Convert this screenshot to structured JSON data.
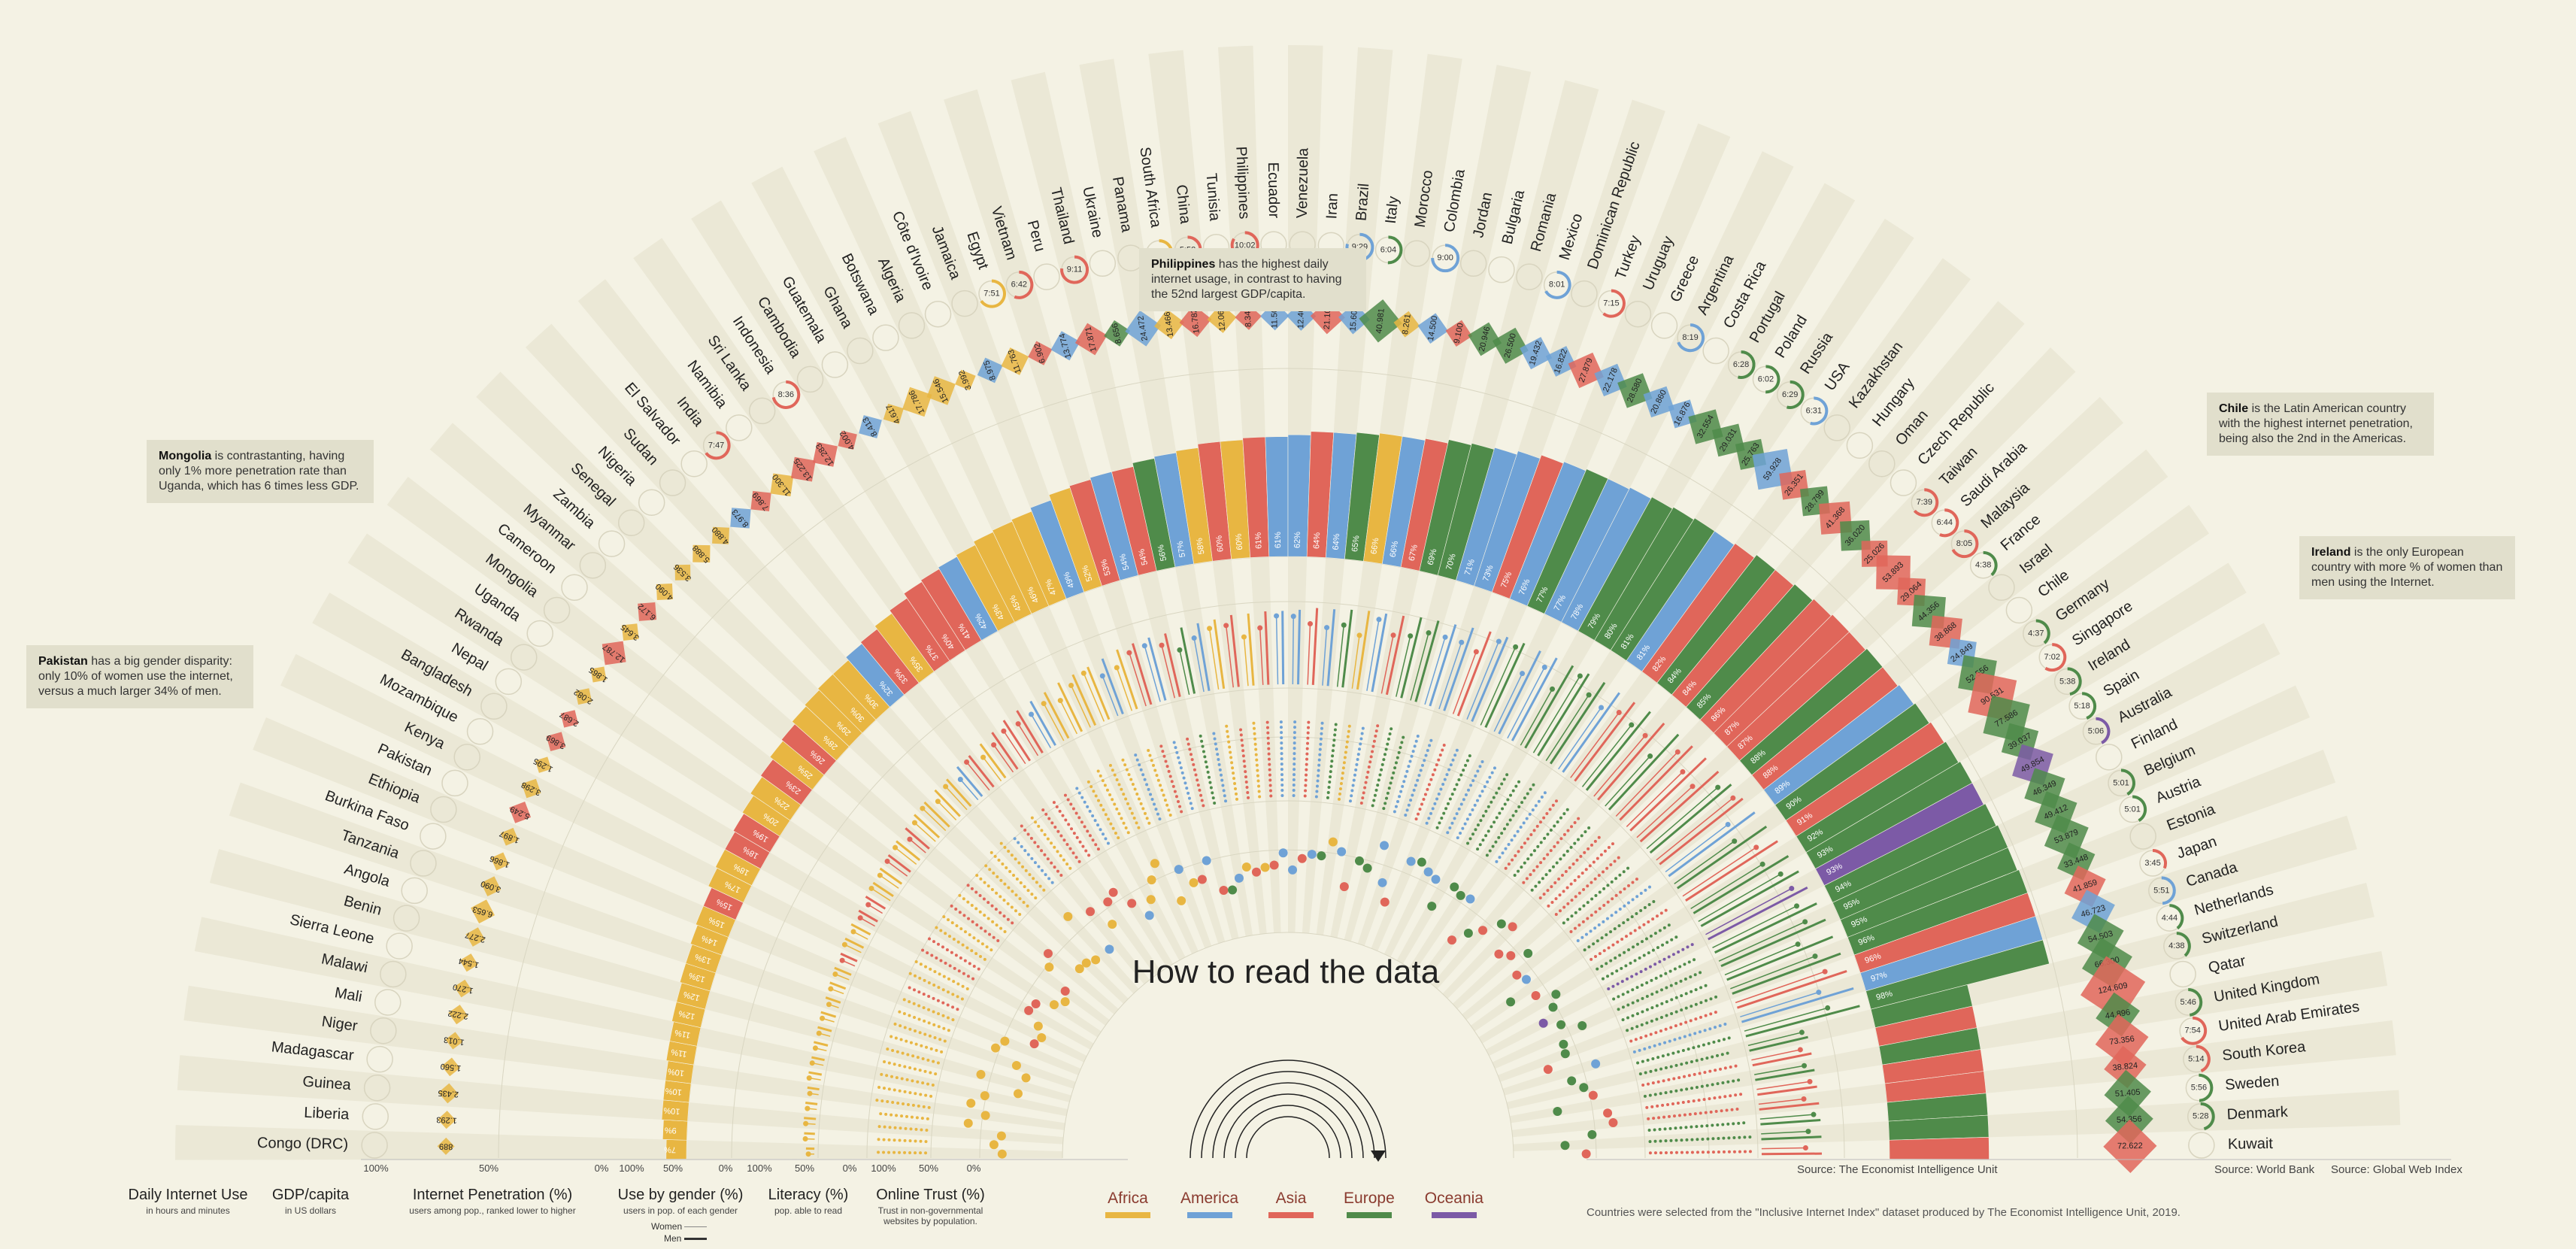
{
  "title": "How to read the data",
  "callouts": [
    {
      "bold": "Philippines",
      "text": " has the highest daily internet usage, in contrast to having the 52nd largest GDP/capita."
    },
    {
      "bold": "Mongolia",
      "text": " is contrastanting, having only 1% more penetration rate than Uganda, which has 6 times less GDP."
    },
    {
      "bold": "Pakistan",
      "text": " has a big gender disparity: only 10% of women use the internet, versus a much larger 34% of men."
    },
    {
      "bold": "Chile",
      "text": " is the Latin American country with the highest internet penetration, being also the 2nd in the Americas."
    },
    {
      "bold": "Ireland",
      "text": " is the only European country with more % of women than men using the Internet."
    }
  ],
  "bottom_labels": [
    {
      "title": "Daily Internet Use",
      "sub": "in hours and minutes"
    },
    {
      "title": "GDP/capita",
      "sub": "in US dollars"
    },
    {
      "title": "Internet Penetration (%)",
      "sub": "users among pop., ranked lower to higher"
    },
    {
      "title": "Use by gender (%)",
      "sub": "users in pop. of each gender"
    },
    {
      "title": "Literacy (%)",
      "sub": "pop. able to read"
    },
    {
      "title": "Online Trust (%)",
      "sub": "Trust in non-governmental websites by population."
    }
  ],
  "gender_legend": {
    "women": "Women",
    "men": "Men"
  },
  "legend": [
    {
      "name": "Africa",
      "color": "#e8b642"
    },
    {
      "name": "America",
      "color": "#6fa2d6"
    },
    {
      "name": "Asia",
      "color": "#e0665a"
    },
    {
      "name": "Europe",
      "color": "#4f8b4a"
    },
    {
      "name": "Oceania",
      "color": "#7c5aa6"
    }
  ],
  "axis_ticks": {
    "penetration": [
      "100%",
      "50%",
      "0%"
    ],
    "gender": [
      "100%",
      "50%",
      "0%"
    ],
    "literacy": [
      "100%",
      "50%",
      "0%"
    ],
    "trust": [
      "100%",
      "50%",
      "0%"
    ]
  },
  "sources": {
    "eiu": "Source: The Economist Intelligence Unit",
    "wb": "Source: World Bank",
    "gwi": "Source: Global Web Index"
  },
  "note": "Countries were selected from the \"Inclusive Internet Index\" dataset produced by The Economist Intelligence Unit, 2019.",
  "chart_data": {
    "type": "radial-bar",
    "penetration_labels_left": [
      "7%",
      "9%",
      "10%",
      "10%",
      "10%",
      "11%",
      "11%",
      "12%",
      "12%",
      "13%",
      "13%",
      "14%",
      "15%",
      "15%",
      "17%",
      "18%",
      "18%",
      "19%",
      "20%",
      "22%",
      "23%",
      "25%",
      "26%",
      "28%",
      "29%",
      "30%",
      "30%",
      "32%",
      "33%",
      "35%",
      "37%",
      "40%",
      "41%",
      "42%",
      "43%",
      "45%",
      "46%",
      "47%",
      "49%",
      "52%",
      "53%",
      "54%",
      "54%",
      "56%",
      "57%",
      "58%"
    ],
    "penetration_labels_right": [
      "60%",
      "60%",
      "61%",
      "61%",
      "62%",
      "64%",
      "64%",
      "65%",
      "66%",
      "66%",
      "67%",
      "69%",
      "70%",
      "71%",
      "73%",
      "75%",
      "76%",
      "77%",
      "77%",
      "78%",
      "79%",
      "80%",
      "81%",
      "81%",
      "82%",
      "84%",
      "84%",
      "85%",
      "86%",
      "87%",
      "87%",
      "88%",
      "88%",
      "89%",
      "90%",
      "91%",
      "92%",
      "93%",
      "93%",
      "94%",
      "95%",
      "95%",
      "96%",
      "96%",
      "97%",
      "98%"
    ],
    "countries": [
      {
        "name": "Congo (DRC)",
        "region": "Africa",
        "gdp": "889"
      },
      {
        "name": "Liberia",
        "region": "Africa",
        "gdp": "1.293"
      },
      {
        "name": "Guinea",
        "region": "Africa",
        "gdp": "2.435"
      },
      {
        "name": "Madagascar",
        "region": "Africa",
        "gdp": "1.560"
      },
      {
        "name": "Niger",
        "region": "Africa",
        "gdp": "1.013"
      },
      {
        "name": "Mali",
        "region": "Africa",
        "gdp": "2.222"
      },
      {
        "name": "Malawi",
        "region": "Africa",
        "gdp": "1.270"
      },
      {
        "name": "Sierra Leone",
        "region": "Africa",
        "gdp": "1.544"
      },
      {
        "name": "Benin",
        "region": "Africa",
        "gdp": "2.277"
      },
      {
        "name": "Angola",
        "region": "Africa",
        "gdp": "6.653"
      },
      {
        "name": "Tanzania",
        "region": "Africa",
        "gdp": "3.090"
      },
      {
        "name": "Burkina Faso",
        "region": "Africa",
        "gdp": "1.866"
      },
      {
        "name": "Ethiopia",
        "region": "Africa",
        "gdp": "1.897"
      },
      {
        "name": "Pakistan",
        "region": "Asia",
        "gdp": "5.249"
      },
      {
        "name": "Kenya",
        "region": "Africa",
        "gdp": "3.298"
      },
      {
        "name": "Mozambique",
        "region": "Africa",
        "gdp": "1.295"
      },
      {
        "name": "Bangladesh",
        "region": "Asia",
        "gdp": "3.869"
      },
      {
        "name": "Nepal",
        "region": "Asia",
        "gdp": "2.687"
      },
      {
        "name": "Rwanda",
        "region": "Africa",
        "gdp": "2.082"
      },
      {
        "name": "Uganda",
        "region": "Africa",
        "gdp": "1.865"
      },
      {
        "name": "Mongolia",
        "region": "Asia",
        "gdp": "12.787"
      },
      {
        "name": "Cameroon",
        "region": "Africa",
        "gdp": "3.645"
      },
      {
        "name": "Myanmar",
        "region": "Asia",
        "gdp": "6.172"
      },
      {
        "name": "Zambia",
        "region": "Africa",
        "gdp": "4.090"
      },
      {
        "name": "Senegal",
        "region": "Africa",
        "gdp": "3.536"
      },
      {
        "name": "Nigeria",
        "region": "Africa",
        "gdp": "5.888"
      },
      {
        "name": "Sudan",
        "region": "Africa",
        "gdp": "4.880"
      },
      {
        "name": "El Salvador",
        "region": "America",
        "gdp": "8.973"
      },
      {
        "name": "India",
        "region": "Asia",
        "gdp": "7.869",
        "usage": "7:47"
      },
      {
        "name": "Namibia",
        "region": "Africa",
        "gdp": "11.300"
      },
      {
        "name": "Sri Lanka",
        "region": "Asia",
        "gdp": "13.225"
      },
      {
        "name": "Indonesia",
        "region": "Asia",
        "gdp": "12.283",
        "usage": "8:36"
      },
      {
        "name": "Cambodia",
        "region": "Asia",
        "gdp": "4.002"
      },
      {
        "name": "Guatemala",
        "region": "America",
        "gdp": "8.413"
      },
      {
        "name": "Ghana",
        "region": "Africa",
        "gdp": "4.617"
      },
      {
        "name": "Botswana",
        "region": "Africa",
        "gdp": "17.786"
      },
      {
        "name": "Algeria",
        "region": "Africa",
        "gdp": "15.546"
      },
      {
        "name": "Côte d'Ivoire",
        "region": "Africa",
        "gdp": "3.992"
      },
      {
        "name": "Jamaica",
        "region": "America",
        "gdp": "8.975"
      },
      {
        "name": "Egypt",
        "region": "Africa",
        "gdp": "11.763",
        "usage": "7:51"
      },
      {
        "name": "Vietnam",
        "region": "Asia",
        "gdp": "6.902",
        "usage": "6:42"
      },
      {
        "name": "Peru",
        "region": "America",
        "gdp": "13.774"
      },
      {
        "name": "Thailand",
        "region": "Asia",
        "gdp": "17.871",
        "usage": "9:11"
      },
      {
        "name": "Ukraine",
        "region": "Europe",
        "gdp": "8.656"
      },
      {
        "name": "Panama",
        "region": "America",
        "gdp": "24.472"
      },
      {
        "name": "South Africa",
        "region": "Africa",
        "gdp": "13.466",
        "usage": "8:25"
      },
      {
        "name": "China",
        "region": "Asia",
        "gdp": "16.782",
        "usage": "5:52"
      },
      {
        "name": "Tunisia",
        "region": "Africa",
        "gdp": "12.062"
      },
      {
        "name": "Philippines",
        "region": "Asia",
        "gdp": "8.343",
        "usage": "10:02"
      },
      {
        "name": "Ecuador",
        "region": "America",
        "gdp": "11.500"
      },
      {
        "name": "Venezuela",
        "region": "America",
        "gdp": "12.400"
      },
      {
        "name": "Iran",
        "region": "Asia",
        "gdp": "21.100"
      },
      {
        "name": "Brazil",
        "region": "America",
        "gdp": "15.600",
        "usage": "9:29"
      },
      {
        "name": "Italy",
        "region": "Europe",
        "gdp": "40.981",
        "usage": "6:04"
      },
      {
        "name": "Morocco",
        "region": "Africa",
        "gdp": "8.261"
      },
      {
        "name": "Colombia",
        "region": "America",
        "gdp": "14.500",
        "usage": "9:00"
      },
      {
        "name": "Jordan",
        "region": "Asia",
        "gdp": "9.100"
      },
      {
        "name": "Bulgaria",
        "region": "Europe",
        "gdp": "20.946"
      },
      {
        "name": "Romania",
        "region": "Europe",
        "gdp": "26.500"
      },
      {
        "name": "Mexico",
        "region": "America",
        "gdp": "19.432",
        "usage": "8:01"
      },
      {
        "name": "Dominican Republic",
        "region": "America",
        "gdp": "16.822"
      },
      {
        "name": "Turkey",
        "region": "Asia",
        "gdp": "27.879",
        "usage": "7:15"
      },
      {
        "name": "Uruguay",
        "region": "America",
        "gdp": "22.178"
      },
      {
        "name": "Greece",
        "region": "Europe",
        "gdp": "28.580"
      },
      {
        "name": "Argentina",
        "region": "America",
        "gdp": "20.860",
        "usage": "8:19"
      },
      {
        "name": "Costa Rica",
        "region": "America",
        "gdp": "16.876"
      },
      {
        "name": "Portugal",
        "region": "Europe",
        "gdp": "32.554",
        "usage": "6:28"
      },
      {
        "name": "Poland",
        "region": "Europe",
        "gdp": "29.031",
        "usage": "6:02"
      },
      {
        "name": "Russia",
        "region": "Europe",
        "gdp": "25.763",
        "usage": "6:29"
      },
      {
        "name": "USA",
        "region": "America",
        "gdp": "59.928",
        "usage": "6:31"
      },
      {
        "name": "Kazakhstan",
        "region": "Asia",
        "gdp": "26.351"
      },
      {
        "name": "Hungary",
        "region": "Europe",
        "gdp": "28.799"
      },
      {
        "name": "Oman",
        "region": "Asia",
        "gdp": "41.368"
      },
      {
        "name": "Czech Republic",
        "region": "Europe",
        "gdp": "36.020"
      },
      {
        "name": "Taiwan",
        "region": "Asia",
        "gdp": "25.026",
        "usage": "7:39"
      },
      {
        "name": "Saudi Arabia",
        "region": "Asia",
        "gdp": "53.893",
        "usage": "6:44"
      },
      {
        "name": "Malaysia",
        "region": "Asia",
        "gdp": "29.064",
        "usage": "8:05"
      },
      {
        "name": "France",
        "region": "Europe",
        "gdp": "44.356",
        "usage": "4:38"
      },
      {
        "name": "Israel",
        "region": "Asia",
        "gdp": "38.868"
      },
      {
        "name": "Chile",
        "region": "America",
        "gdp": "24.849"
      },
      {
        "name": "Germany",
        "region": "Europe",
        "gdp": "52.556",
        "usage": "4:37"
      },
      {
        "name": "Singapore",
        "region": "Asia",
        "gdp": "90.531",
        "usage": "7:02"
      },
      {
        "name": "Ireland",
        "region": "Europe",
        "gdp": "77.586",
        "usage": "5:38"
      },
      {
        "name": "Spain",
        "region": "Europe",
        "gdp": "39.037",
        "usage": "5:18"
      },
      {
        "name": "Australia",
        "region": "Oceania",
        "gdp": "49.854",
        "usage": "5:06"
      },
      {
        "name": "Finland",
        "region": "Europe",
        "gdp": "46.349"
      },
      {
        "name": "Belgium",
        "region": "Europe",
        "gdp": "49.412",
        "usage": "5:01"
      },
      {
        "name": "Austria",
        "region": "Europe",
        "gdp": "53.879",
        "usage": "5:01"
      },
      {
        "name": "Estonia",
        "region": "Europe",
        "gdp": "33.448"
      },
      {
        "name": "Japan",
        "region": "Asia",
        "gdp": "41.859",
        "usage": "3:45"
      },
      {
        "name": "Canada",
        "region": "America",
        "gdp": "46.723",
        "usage": "5:51"
      },
      {
        "name": "Netherlands",
        "region": "Europe",
        "gdp": "54.503",
        "usage": "4:44"
      },
      {
        "name": "Switzerland",
        "region": "Europe",
        "gdp": "66.300",
        "usage": "4:38"
      },
      {
        "name": "Qatar",
        "region": "Asia",
        "gdp": "124.609"
      },
      {
        "name": "United Kingdom",
        "region": "Europe",
        "gdp": "44.896",
        "usage": "5:46"
      },
      {
        "name": "United Arab Emirates",
        "region": "Asia",
        "gdp": "73.356",
        "usage": "7:54"
      },
      {
        "name": "South Korea",
        "region": "Asia",
        "gdp": "38.824",
        "usage": "5:14"
      },
      {
        "name": "Sweden",
        "region": "Europe",
        "gdp": "51.405",
        "usage": "5:56"
      },
      {
        "name": "Denmark",
        "region": "Europe",
        "gdp": "54.356",
        "usage": "5:28"
      },
      {
        "name": "Kuwait",
        "region": "Asia",
        "gdp": "72.622"
      }
    ]
  }
}
